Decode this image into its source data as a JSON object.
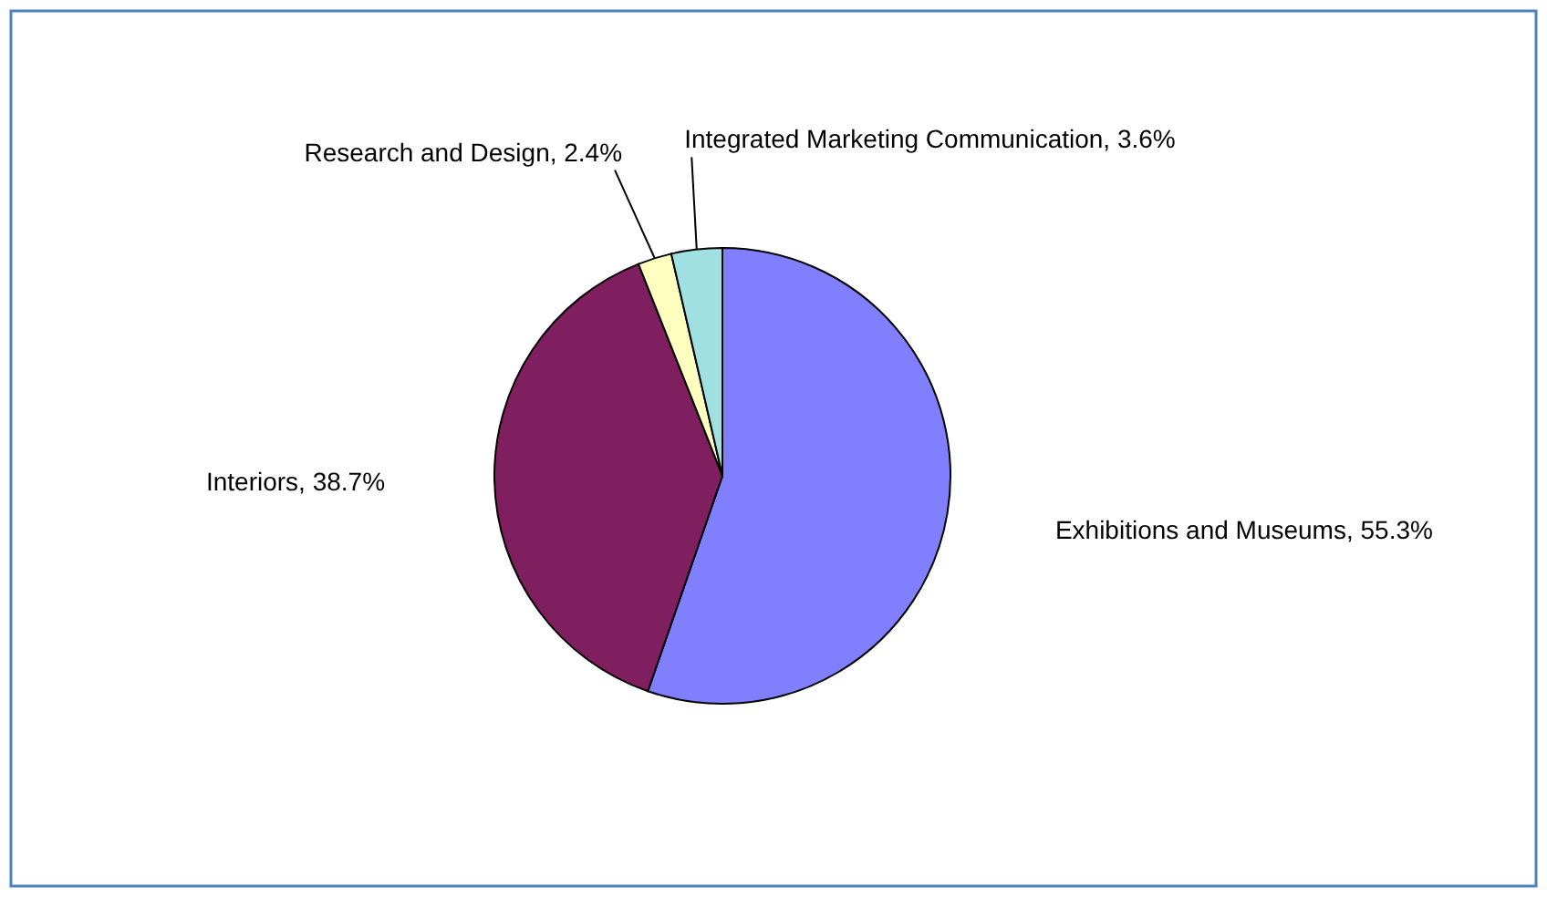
{
  "chart_data": {
    "type": "pie",
    "categories": [
      "Exhibitions and Museums",
      "Interiors",
      "Research and Design",
      "Integrated Marketing Communication"
    ],
    "values": [
      55.3,
      38.7,
      2.4,
      3.6
    ],
    "colors": [
      "#8080ff",
      "#7f1f5f",
      "#ffffc0",
      "#a0e0e0"
    ],
    "value_labels": [
      "55.3%",
      "38.7%",
      "2.4%",
      "3.6%"
    ]
  }
}
